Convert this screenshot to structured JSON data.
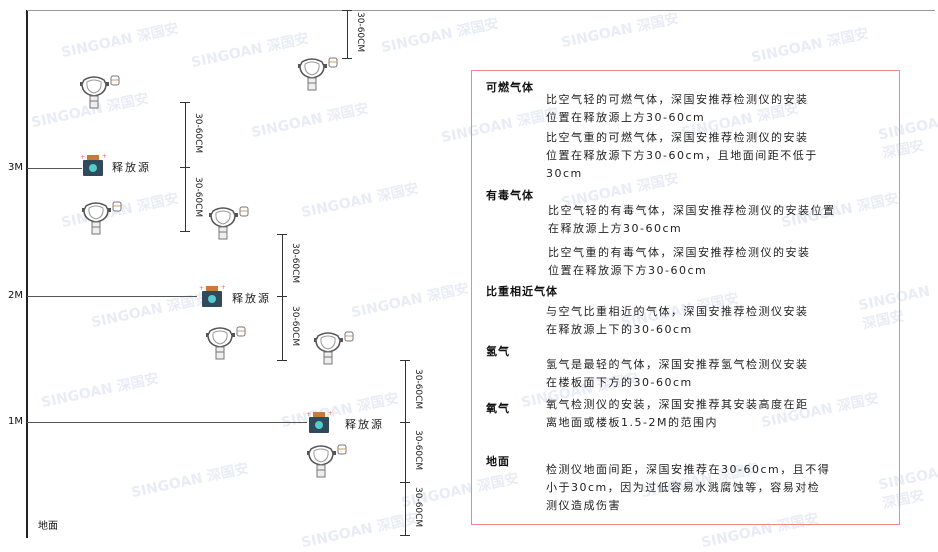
{
  "levels": {
    "m3": "3M",
    "m2": "2M",
    "m1": "1M",
    "floor": "地面"
  },
  "dimension_label": "30-60CM",
  "source_label": "释放源",
  "watermark": "SINGOAN 深国安",
  "colors": {
    "box_border": "#ee8888",
    "source_body": "#2f4a5a",
    "source_cap": "#c87a3a",
    "detector": "#555555"
  },
  "panel": {
    "combustible": {
      "title": "可燃气体",
      "lighter": "比空气轻的可燃气体，深国安推荐检测仪的安装\n位置在释放源上方30-60cm",
      "heavier": "比空气重的可燃气体，深国安推荐检测仪的安装\n位置在释放源下方30-60cm，且地面间距不低于\n30cm"
    },
    "toxic": {
      "title": "有毒气体",
      "lighter": "比空气轻的有毒气体，深国安推荐检测仪的安装位置\n在释放源上方30-60cm",
      "heavier": "比空气重的有毒气体，深国安推荐检测仪的安装\n位置在释放源下方30-60cm"
    },
    "similar": {
      "title": "比重相近气体",
      "text": "与空气比重相近的气体，深国安推荐检测仪安装\n在释放源上下的30-60cm"
    },
    "hydrogen": {
      "title": "氢气",
      "text": "氢气是最轻的气体，深国安推荐氢气检测仪安装\n在楼板面下方的30-60cm"
    },
    "oxygen": {
      "title": "氧气",
      "text": "氧气检测仪的安装，深国安推荐其安装高度在距\n离地面或楼板1.5-2M的范围内"
    },
    "floor": {
      "title": "地面",
      "text": "检测仪地面间距，深国安推荐在30-60cm，且不得\n小于30cm，因为过低容易水溅腐蚀等，容易对检\n测仪造成伤害"
    }
  }
}
